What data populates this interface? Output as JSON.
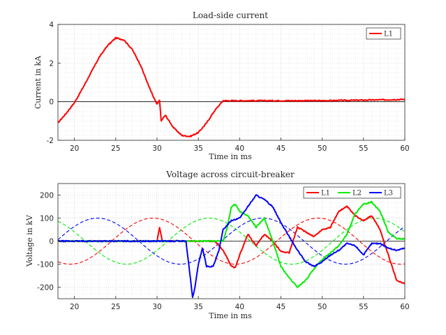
{
  "chart_data": [
    {
      "type": "line",
      "title": "Load-side current",
      "xlabel": "Time in ms",
      "ylabel": "Current in kA",
      "xlim": [
        18,
        60
      ],
      "ylim": [
        -2,
        4
      ],
      "xticks": [
        20,
        25,
        30,
        35,
        40,
        45,
        50,
        55,
        60
      ],
      "yticks": [
        -2,
        0,
        2,
        4
      ],
      "grid": "minor-dotted",
      "legend_position": "top-right",
      "series": [
        {
          "name": "L1",
          "color": "#ff0000",
          "style": "solid",
          "x": [
            18,
            19,
            20,
            21,
            22,
            23,
            24,
            25,
            26,
            27,
            28,
            29,
            29.5,
            30,
            30.3,
            30.5,
            31,
            32,
            33,
            34,
            35,
            36,
            37,
            38,
            38.2,
            39,
            40,
            42,
            45,
            50,
            55,
            58,
            60
          ],
          "y": [
            -1.1,
            -0.6,
            -0.05,
            0.7,
            1.5,
            2.3,
            2.9,
            3.3,
            3.2,
            2.7,
            1.9,
            0.8,
            0.3,
            -0.15,
            0.1,
            -1.0,
            -0.7,
            -1.35,
            -1.75,
            -1.8,
            -1.6,
            -1.1,
            -0.45,
            0.05,
            0.05,
            0.05,
            0.05,
            0.05,
            0.05,
            0.05,
            0.08,
            0.1,
            0.12
          ]
        }
      ]
    },
    {
      "type": "line",
      "title": "Voltage across circuit-breaker",
      "xlabel": "Time in ms",
      "ylabel": "Voltage in kV",
      "xlim": [
        18,
        60
      ],
      "ylim": [
        -250,
        250
      ],
      "xticks": [
        20,
        25,
        30,
        35,
        40,
        45,
        50,
        55,
        60
      ],
      "yticks": [
        -200,
        -100,
        0,
        100,
        200
      ],
      "grid": "minor-dotted",
      "legend_position": "top-right",
      "series": [
        {
          "name": "L1",
          "color": "#ff0000",
          "style": "solid",
          "x": [
            18,
            22,
            26,
            30,
            30.3,
            30.6,
            31,
            34,
            37,
            38,
            39,
            39.5,
            40,
            41,
            42,
            43,
            44,
            45,
            46,
            47,
            48,
            49,
            50,
            51,
            52,
            53,
            54,
            55,
            56,
            57,
            58,
            59,
            60
          ],
          "y": [
            0,
            0,
            0,
            0,
            60,
            5,
            0,
            0,
            0,
            -40,
            -110,
            -115,
            -60,
            30,
            -20,
            30,
            0,
            -45,
            -50,
            60,
            40,
            20,
            50,
            60,
            130,
            150,
            110,
            90,
            110,
            50,
            -60,
            -170,
            -185
          ]
        },
        {
          "name": "L2",
          "color": "#00ee00",
          "style": "solid",
          "x": [
            18,
            30,
            35,
            38,
            38.5,
            39,
            39.5,
            40,
            41,
            42,
            43,
            44,
            45,
            46,
            47,
            48,
            49,
            50,
            51,
            52,
            53,
            54,
            55,
            56,
            57,
            58,
            59,
            60
          ],
          "y": [
            0,
            0,
            0,
            0,
            60,
            150,
            160,
            130,
            110,
            60,
            100,
            0,
            -110,
            -160,
            -200,
            -170,
            -120,
            -80,
            -50,
            -20,
            30,
            120,
            160,
            170,
            130,
            40,
            10,
            10
          ]
        },
        {
          "name": "L3",
          "color": "#0000ff",
          "style": "solid",
          "x": [
            18,
            25,
            30,
            33.5,
            34,
            34.3,
            34.6,
            35,
            35.5,
            36,
            36.8,
            37.5,
            38,
            39,
            40,
            41,
            42,
            43,
            44,
            45,
            46,
            47,
            48,
            49,
            50,
            51,
            52,
            53,
            54,
            55,
            56,
            57,
            58,
            59,
            60
          ],
          "y": [
            0,
            0,
            0,
            0,
            -150,
            -245,
            -200,
            -100,
            -30,
            -110,
            -110,
            -40,
            50,
            90,
            100,
            150,
            200,
            180,
            150,
            80,
            20,
            -40,
            -90,
            -110,
            -90,
            -60,
            -40,
            -10,
            -20,
            -60,
            -10,
            -10,
            -30,
            -40,
            -30
          ]
        },
        {
          "name": "",
          "color": "#ff0000",
          "style": "dashed",
          "formula": {
            "amplitude": 100,
            "period": 20,
            "peak_at": 29.5
          }
        },
        {
          "name": "",
          "color": "#00ee00",
          "style": "dashed",
          "formula": {
            "amplitude": 100,
            "period": 20,
            "peak_at": 36.3
          }
        },
        {
          "name": "",
          "color": "#0000ff",
          "style": "dashed",
          "formula": {
            "amplitude": 100,
            "period": 20,
            "peak_at": 22.8
          }
        }
      ]
    }
  ]
}
